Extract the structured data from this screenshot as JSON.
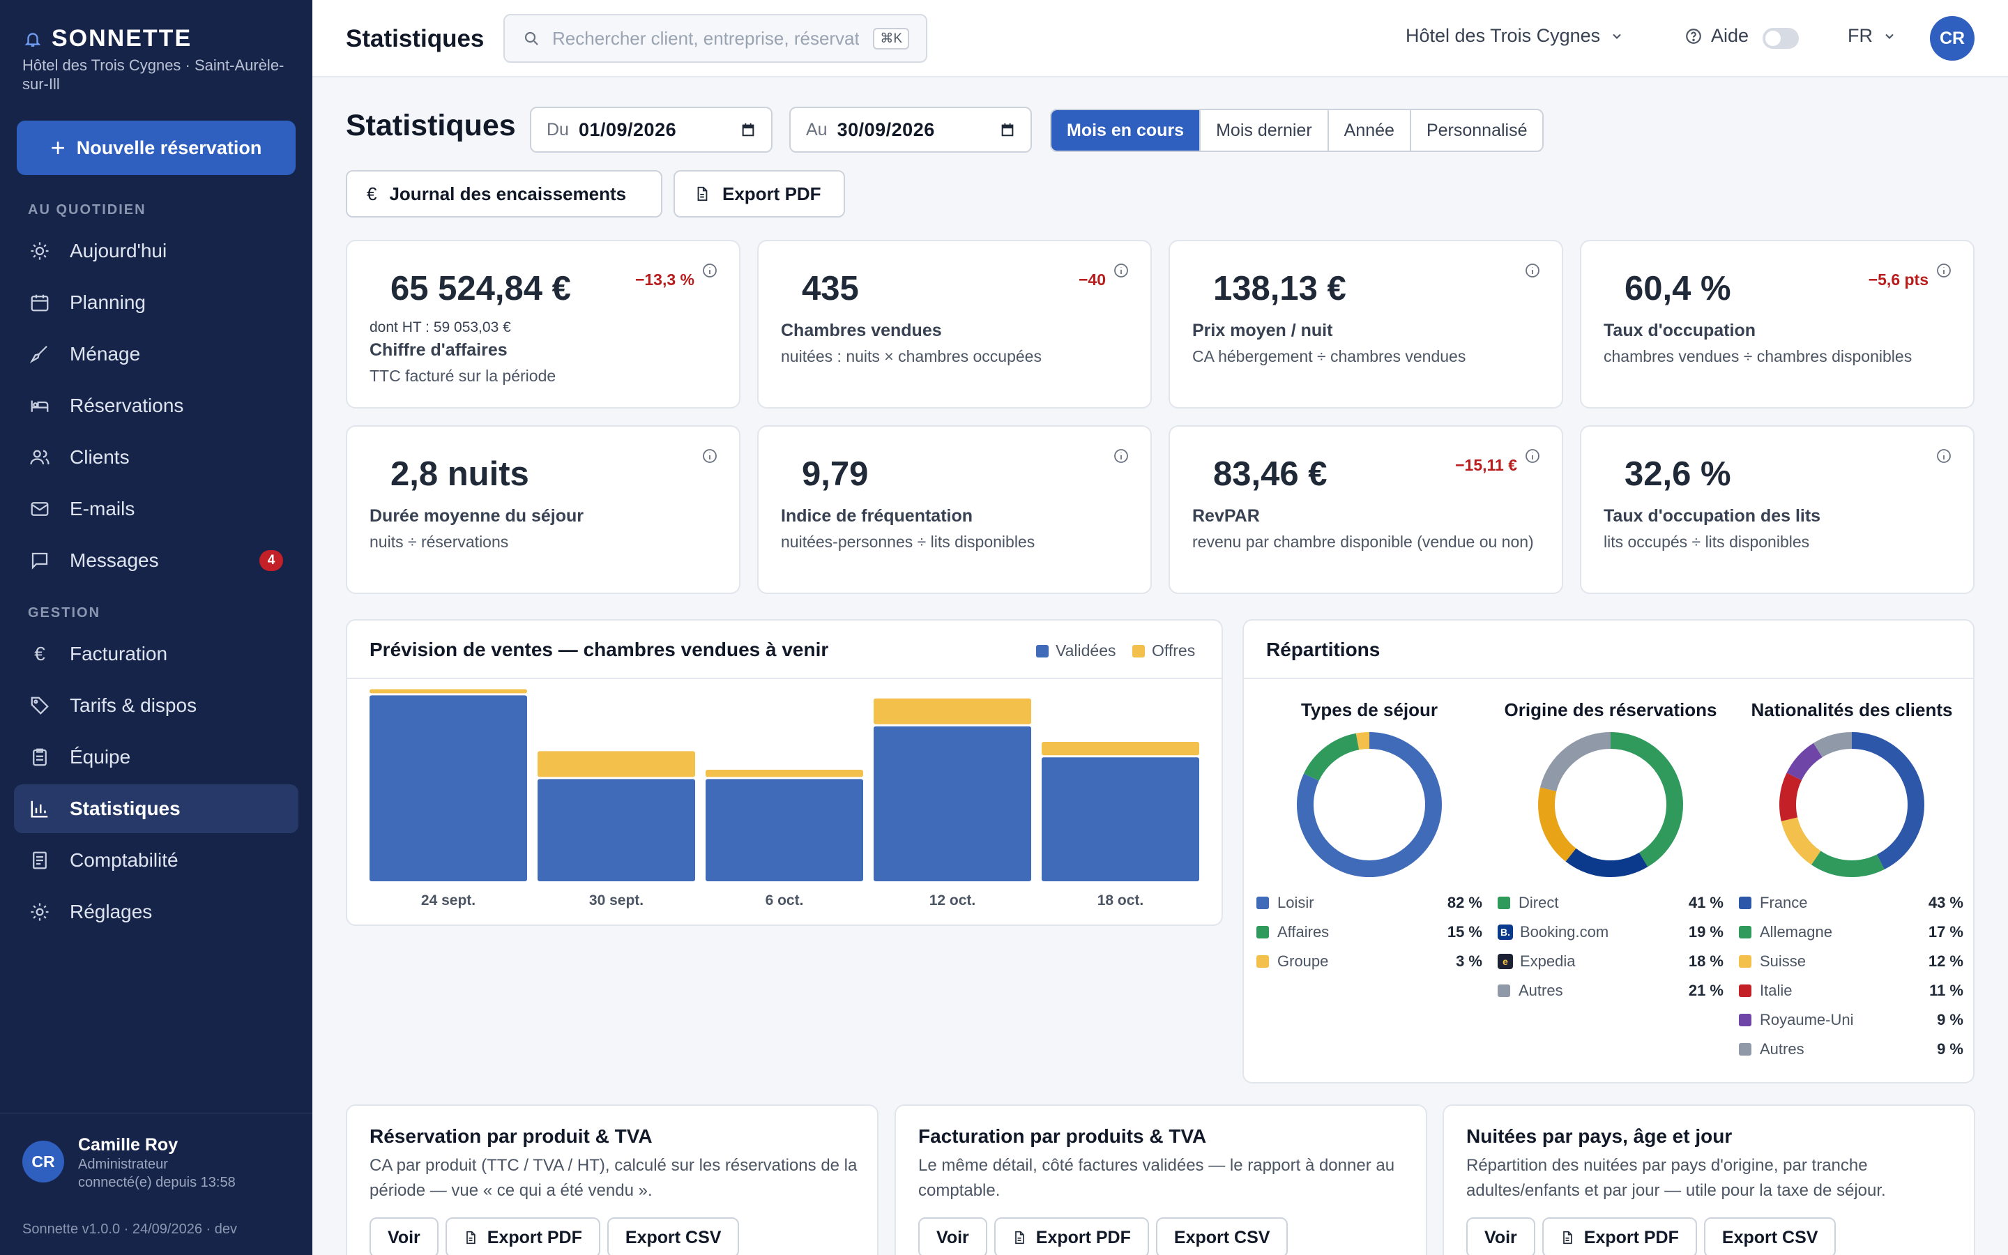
{
  "brand": {
    "name": "SONNETTE",
    "subtitle": "Hôtel des Trois Cygnes · Saint-Aurèle-sur-Ill"
  },
  "sidebar": {
    "new_reservation": "Nouvelle réservation",
    "section_daily": "AU QUOTIDIEN",
    "section_management": "GESTION",
    "items": [
      {
        "label": "Aujourd'hui",
        "icon": "sun-icon"
      },
      {
        "label": "Planning",
        "icon": "calendar-icon"
      },
      {
        "label": "Ménage",
        "icon": "broom-icon"
      },
      {
        "label": "Réservations",
        "icon": "bed-icon"
      },
      {
        "label": "Clients",
        "icon": "users-icon"
      },
      {
        "label": "E-mails",
        "icon": "mail-icon"
      },
      {
        "label": "Messages",
        "icon": "chat-icon",
        "badge": "4"
      },
      {
        "label": "Facturation",
        "icon": "euro-icon"
      },
      {
        "label": "Tarifs & dispos",
        "icon": "tag-icon"
      },
      {
        "label": "Équipe",
        "icon": "clipboard-icon"
      },
      {
        "label": "Statistiques",
        "icon": "bar-chart-icon",
        "active": true
      },
      {
        "label": "Comptabilité",
        "icon": "ledger-icon"
      },
      {
        "label": "Réglages",
        "icon": "gear-icon"
      }
    ],
    "user": {
      "initials": "CR",
      "name": "Camille Roy",
      "role": "Administrateur",
      "since": "connecté(e) depuis 13:58"
    },
    "version": "Sonnette v1.0.0 · 24/09/2026 · dev"
  },
  "topbar": {
    "title": "Statistiques",
    "search_placeholder": "Rechercher client, entreprise, réservation…",
    "shortcut": "⌘K",
    "hotel": "Hôtel des Trois Cygnes",
    "help": "Aide",
    "lang": "FR",
    "avatar": "CR"
  },
  "main": {
    "title": "Statistiques",
    "from_label": "Du",
    "from_value": "01/09/2026",
    "to_label": "Au",
    "to_value": "30/09/2026",
    "periods": [
      "Mois en cours",
      "Mois dernier",
      "Année",
      "Personnalisé"
    ],
    "journal_button": "Journal des encaissements",
    "journal_icon_glyph": "€",
    "export_pdf": "Export PDF"
  },
  "kpis": [
    {
      "value": "65 524,84 €",
      "delta": "−13,3 %",
      "sub": "dont HT : 59 053,03 €",
      "name": "Chiffre d'affaires",
      "desc": "TTC facturé sur la période"
    },
    {
      "value": "435",
      "delta": "−40",
      "name": "Chambres vendues",
      "desc": "nuitées : nuits × chambres occupées"
    },
    {
      "value": "138,13 €",
      "delta": "",
      "name": "Prix moyen / nuit",
      "desc": "CA hébergement ÷ chambres vendues"
    },
    {
      "value": "60,4 %",
      "delta": "−5,6 pts",
      "name": "Taux d'occupation",
      "desc": "chambres vendues ÷ chambres disponibles"
    },
    {
      "value": "2,8 nuits",
      "delta": "",
      "name": "Durée moyenne du séjour",
      "desc": "nuits ÷ réservations"
    },
    {
      "value": "9,79",
      "delta": "",
      "name": "Indice de fréquentation",
      "desc": "nuitées-personnes ÷ lits disponibles"
    },
    {
      "value": "83,46 €",
      "delta": "−15,11 €",
      "name": "RevPAR",
      "desc": "revenu par chambre disponible (vendue ou non)"
    },
    {
      "value": "32,6 %",
      "delta": "",
      "name": "Taux d'occupation des lits",
      "desc": "lits occupés ÷ lits disponibles"
    }
  ],
  "forecast": {
    "title": "Prévision de ventes — chambres vendues à venir",
    "legend_valid": "Validées",
    "legend_offers": "Offres",
    "color_valid": "#3f6bb8",
    "color_offers": "#f2c04b"
  },
  "chart_data": {
    "type": "bar",
    "stacked": true,
    "categories": [
      "24 sept.",
      "30 sept.",
      "6 oct.",
      "12 oct.",
      "18 oct."
    ],
    "series": [
      {
        "name": "Validées",
        "values": [
          60,
          33,
          33,
          50,
          40
        ]
      },
      {
        "name": "Offres",
        "values": [
          2,
          9,
          3,
          9,
          5
        ]
      }
    ],
    "ylim": [
      0,
      63
    ],
    "xlabel": "",
    "ylabel": "",
    "grid": false,
    "legend": "top-right"
  },
  "breakdowns": {
    "title": "Répartitions",
    "donuts": [
      {
        "title": "Types de séjour",
        "items": [
          {
            "label": "Loisir",
            "pct": "82 %",
            "value": 82,
            "color": "#3f6bb8"
          },
          {
            "label": "Affaires",
            "pct": "15 %",
            "value": 15,
            "color": "#2f9a5b"
          },
          {
            "label": "Groupe",
            "pct": "3 %",
            "value": 3,
            "color": "#f2c04b"
          }
        ]
      },
      {
        "title": "Origine des réservations",
        "items": [
          {
            "label": "Direct",
            "pct": "41 %",
            "value": 41,
            "color": "#2f9a5b",
            "icon": "square"
          },
          {
            "label": "Booking.com",
            "pct": "19 %",
            "value": 19,
            "color": "#0b3a8c",
            "icon": "booking-icon",
            "glyph": "B."
          },
          {
            "label": "Expedia",
            "pct": "18 %",
            "value": 18,
            "color": "#e8a317",
            "icon": "expedia-icon",
            "glyph": "e"
          },
          {
            "label": "Autres",
            "pct": "21 %",
            "value": 21,
            "color": "#8f99a8",
            "icon": "square"
          }
        ]
      },
      {
        "title": "Nationalités des clients",
        "items": [
          {
            "label": "France",
            "pct": "43 %",
            "value": 43,
            "color": "#2d57a8"
          },
          {
            "label": "Allemagne",
            "pct": "17 %",
            "value": 17,
            "color": "#2f9a5b"
          },
          {
            "label": "Suisse",
            "pct": "12 %",
            "value": 12,
            "color": "#f2c04b"
          },
          {
            "label": "Italie",
            "pct": "11 %",
            "value": 11,
            "color": "#c42027"
          },
          {
            "label": "Royaume-Uni",
            "pct": "9 %",
            "value": 9,
            "color": "#6f45a8"
          },
          {
            "label": "Autres",
            "pct": "9 %",
            "value": 9,
            "color": "#8f99a8"
          }
        ]
      }
    ]
  },
  "reports": [
    {
      "title": "Réservation par produit & TVA",
      "desc": "CA par produit (TTC / TVA / HT), calculé sur les réservations de la période — vue « ce qui a été vendu ».",
      "view": "Voir",
      "pdf": "Export PDF",
      "csv": "Export CSV"
    },
    {
      "title": "Facturation par produits & TVA",
      "desc": "Le même détail, côté factures validées — le rapport à donner au comptable.",
      "view": "Voir",
      "pdf": "Export PDF",
      "csv": "Export CSV"
    },
    {
      "title": "Nuitées par pays, âge et jour",
      "desc": "Répartition des nuitées par pays d'origine, par tranche adultes/enfants et par jour — utile pour la taxe de séjour.",
      "view": "Voir",
      "pdf": "Export PDF",
      "csv": "Export CSV"
    }
  ]
}
